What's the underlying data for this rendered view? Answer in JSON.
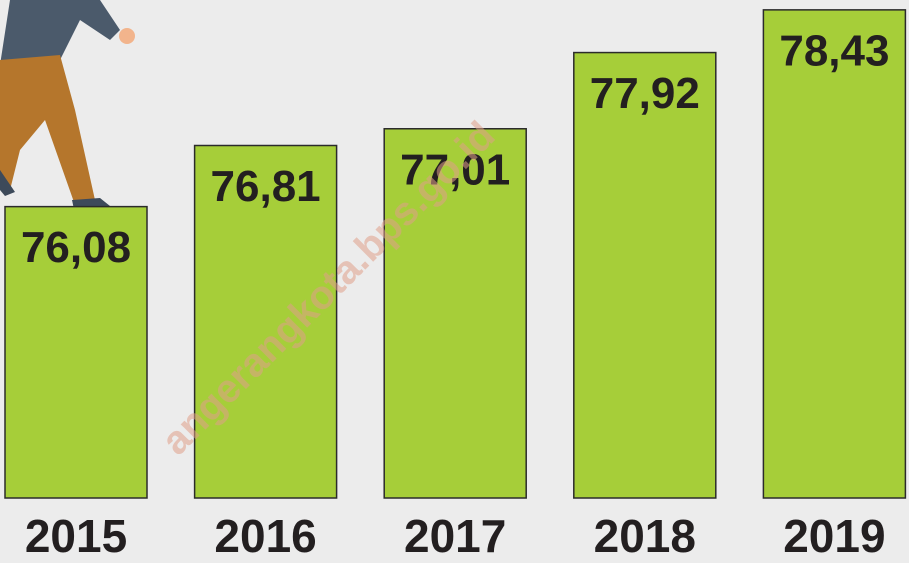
{
  "chart_data": {
    "type": "bar",
    "categories": [
      "2015",
      "2016",
      "2017",
      "2018",
      "2019"
    ],
    "values": [
      76.08,
      76.81,
      77.01,
      77.92,
      78.43
    ],
    "value_labels": [
      "76,08",
      "76,81",
      "77,01",
      "77,92",
      "78,43"
    ],
    "color": "#a6ce39",
    "ylim": [
      72.6,
      78.5
    ],
    "watermark": "angerangkota.bps.go.id"
  }
}
